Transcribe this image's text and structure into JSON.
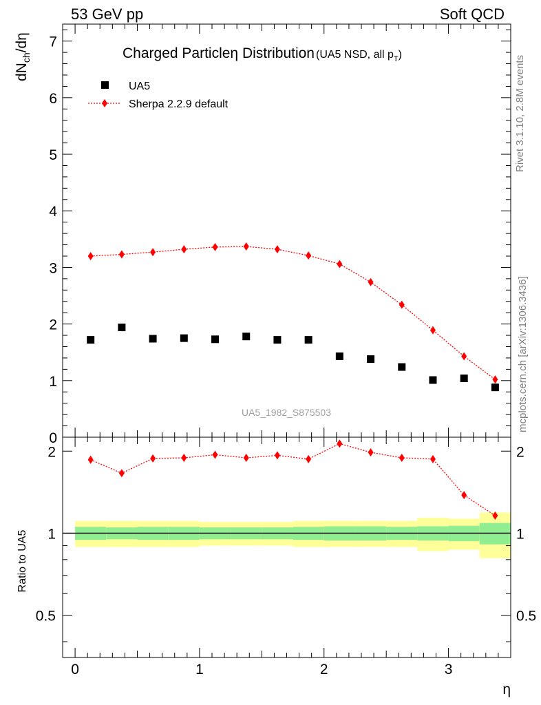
{
  "header": {
    "left": "53 GeV pp",
    "right": "Soft QCD"
  },
  "side_text": {
    "rivet": "Rivet 3.1.10,  2.8M events",
    "mcplots": "mcplots.cern.ch [arXiv:1306.3436]"
  },
  "watermark": "UA5_1982_S875503",
  "chart_data": [
    {
      "type": "scatter",
      "panel": "main",
      "title": "Charged Particle",
      "title_symbol": "η",
      "title_rest": " Distribution",
      "title_sub_main": "(UA5 NSD, all p",
      "title_sub_sub": "T",
      "title_sub_close": ")",
      "ylabel": "dN",
      "ylabel_sub": "ch",
      "ylabel_rest": "/dη",
      "xlim": [
        -0.1,
        3.5
      ],
      "ylim": [
        0,
        7.3
      ],
      "yticks": [
        0,
        1,
        2,
        3,
        4,
        5,
        6,
        7
      ],
      "ytick_labels": [
        "0",
        "1",
        "2",
        "3",
        "4",
        "5",
        "6",
        "7"
      ],
      "legend": [
        "UA5",
        "Sherpa 2.2.9 default"
      ],
      "legend_position": "top-left",
      "colors": {
        "data": "#000000",
        "mc": "#ff0000"
      },
      "x": [
        0.125,
        0.375,
        0.625,
        0.875,
        1.125,
        1.375,
        1.625,
        1.875,
        2.125,
        2.375,
        2.625,
        2.875,
        3.125,
        3.375
      ],
      "series": [
        {
          "name": "UA5",
          "marker": "square",
          "values": [
            1.72,
            1.94,
            1.74,
            1.75,
            1.73,
            1.78,
            1.72,
            1.72,
            1.43,
            1.38,
            1.24,
            1.01,
            1.04,
            0.88
          ]
        },
        {
          "name": "Sherpa 2.2.9 default",
          "marker": "diamond",
          "line": "dotted",
          "values": [
            3.2,
            3.23,
            3.27,
            3.32,
            3.36,
            3.37,
            3.32,
            3.21,
            3.06,
            2.74,
            2.34,
            1.89,
            1.43,
            1.02
          ]
        }
      ]
    },
    {
      "type": "line",
      "panel": "ratio",
      "ylabel": "Ratio to UA5",
      "xlabel": "η",
      "xlim": [
        -0.1,
        3.5
      ],
      "ylim": [
        0.35,
        2.25
      ],
      "xticks": [
        0,
        1,
        2,
        3
      ],
      "xtick_labels": [
        "0",
        "1",
        "2",
        "3"
      ],
      "yticks": [
        0.5,
        1,
        2
      ],
      "ytick_labels": [
        "0.5",
        "1",
        "2"
      ],
      "reference_line": 1,
      "bands": {
        "x_edges": [
          0,
          0.25,
          0.5,
          0.75,
          1.0,
          1.25,
          1.5,
          1.75,
          2.0,
          2.25,
          2.5,
          2.75,
          3.0,
          3.25,
          3.5
        ],
        "inner_halfwidth": [
          0.055,
          0.05,
          0.055,
          0.055,
          0.05,
          0.05,
          0.05,
          0.055,
          0.06,
          0.06,
          0.055,
          0.06,
          0.065,
          0.09
        ],
        "outer_halfwidth": [
          0.11,
          0.11,
          0.11,
          0.11,
          0.1,
          0.1,
          0.1,
          0.11,
          0.11,
          0.11,
          0.11,
          0.14,
          0.13,
          0.19
        ],
        "inner_color": "#90ee90",
        "outer_color": "#ffff99"
      },
      "series": [
        {
          "name": "Sherpa 2.2.9 default / UA5",
          "values": [
            1.86,
            1.66,
            1.88,
            1.89,
            1.94,
            1.89,
            1.93,
            1.87,
            2.13,
            1.98,
            1.89,
            1.87,
            1.38,
            1.16
          ]
        }
      ]
    }
  ]
}
